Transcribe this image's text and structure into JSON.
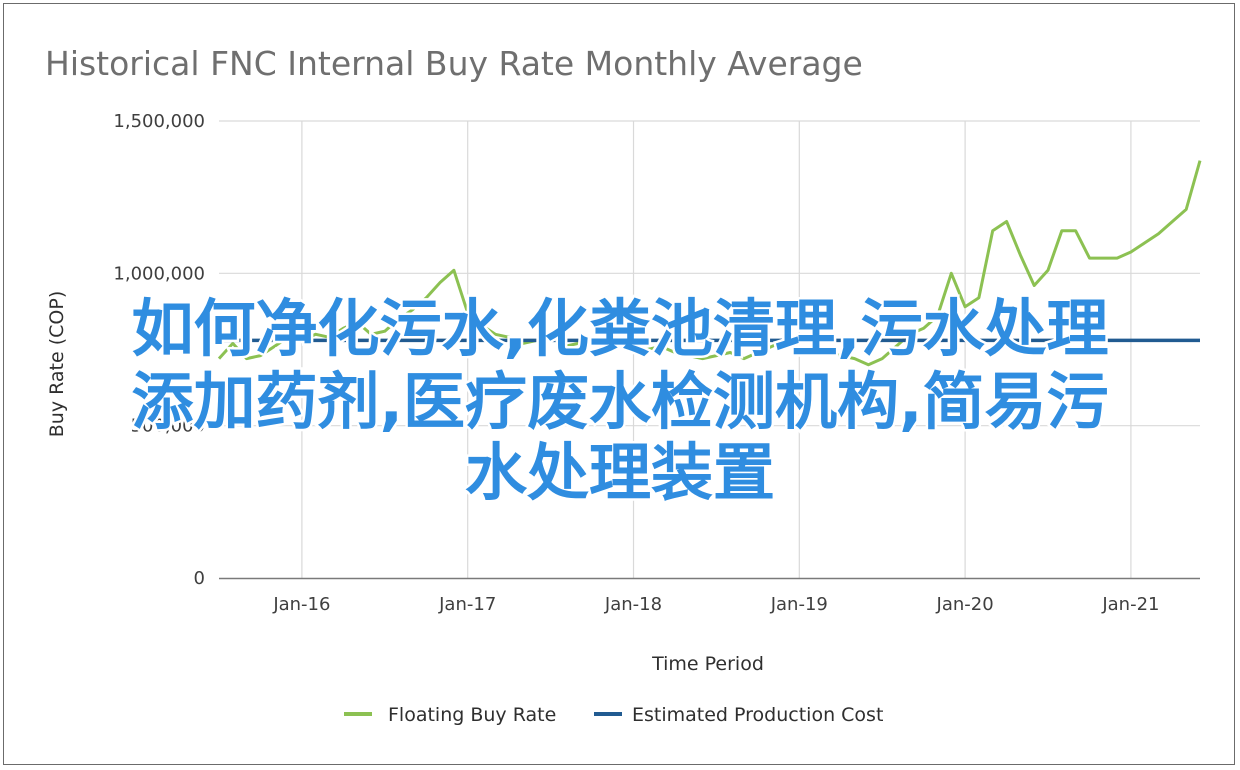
{
  "chart_data": {
    "type": "line",
    "title": "Historical FNC Internal Buy Rate Monthly Average",
    "xlabel": "Time Period",
    "ylabel": "Buy Rate (COP)",
    "ylim": [
      0,
      1500000
    ],
    "yticks": [
      0,
      500000,
      1000000,
      1500000
    ],
    "ytick_labels": [
      "0",
      "500,000",
      "1,000,000",
      "1,500,000"
    ],
    "xticks": [
      "Jan-16",
      "Jan-17",
      "Jan-18",
      "Jan-19",
      "Jan-20",
      "Jan-21"
    ],
    "x_range": [
      "2015-07",
      "2021-06"
    ],
    "grid": "vertical and horizontal",
    "legend_position": "bottom",
    "series": [
      {
        "name": "Floating Buy Rate",
        "color": "#8cc152",
        "x": [
          "2015-07",
          "2015-08",
          "2015-09",
          "2015-10",
          "2015-11",
          "2015-12",
          "2016-01",
          "2016-02",
          "2016-03",
          "2016-04",
          "2016-05",
          "2016-06",
          "2016-07",
          "2016-08",
          "2016-09",
          "2016-10",
          "2016-11",
          "2016-12",
          "2017-01",
          "2017-02",
          "2017-03",
          "2017-04",
          "2017-05",
          "2017-06",
          "2017-07",
          "2017-08",
          "2017-09",
          "2017-10",
          "2017-11",
          "2017-12",
          "2018-01",
          "2018-02",
          "2018-03",
          "2018-04",
          "2018-05",
          "2018-06",
          "2018-07",
          "2018-08",
          "2018-09",
          "2018-10",
          "2018-11",
          "2018-12",
          "2019-01",
          "2019-02",
          "2019-03",
          "2019-04",
          "2019-05",
          "2019-06",
          "2019-07",
          "2019-08",
          "2019-09",
          "2019-10",
          "2019-11",
          "2019-12",
          "2020-01",
          "2020-02",
          "2020-03",
          "2020-04",
          "2020-05",
          "2020-06",
          "2020-07",
          "2020-08",
          "2020-09",
          "2020-10",
          "2020-11",
          "2020-12",
          "2021-01",
          "2021-02",
          "2021-03",
          "2021-04",
          "2021-05",
          "2021-06"
        ],
        "values": [
          720000,
          770000,
          720000,
          730000,
          760000,
          790000,
          780000,
          800000,
          790000,
          820000,
          840000,
          800000,
          810000,
          850000,
          880000,
          920000,
          970000,
          1010000,
          870000,
          830000,
          800000,
          790000,
          770000,
          780000,
          790000,
          760000,
          770000,
          780000,
          790000,
          770000,
          760000,
          750000,
          760000,
          740000,
          730000,
          720000,
          730000,
          740000,
          720000,
          740000,
          760000,
          780000,
          750000,
          740000,
          740000,
          730000,
          720000,
          700000,
          720000,
          760000,
          800000,
          820000,
          860000,
          1000000,
          890000,
          920000,
          1140000,
          1170000,
          1060000,
          960000,
          1010000,
          1140000,
          1140000,
          1050000,
          1050000,
          1050000,
          1070000,
          1100000,
          1130000,
          1170000,
          1210000,
          1370000
        ]
      },
      {
        "name": "Estimated Production Cost",
        "color": "#215b91",
        "x": [
          "2015-07",
          "2021-06"
        ],
        "values": [
          780000,
          780000
        ]
      }
    ]
  },
  "watermark": {
    "lines": [
      "如何净化污水,化粪池清理,污水处理",
      "添加药剂,医疗废水检测机构,简易污",
      "水处理装置"
    ],
    "color": "#2f8de0"
  }
}
